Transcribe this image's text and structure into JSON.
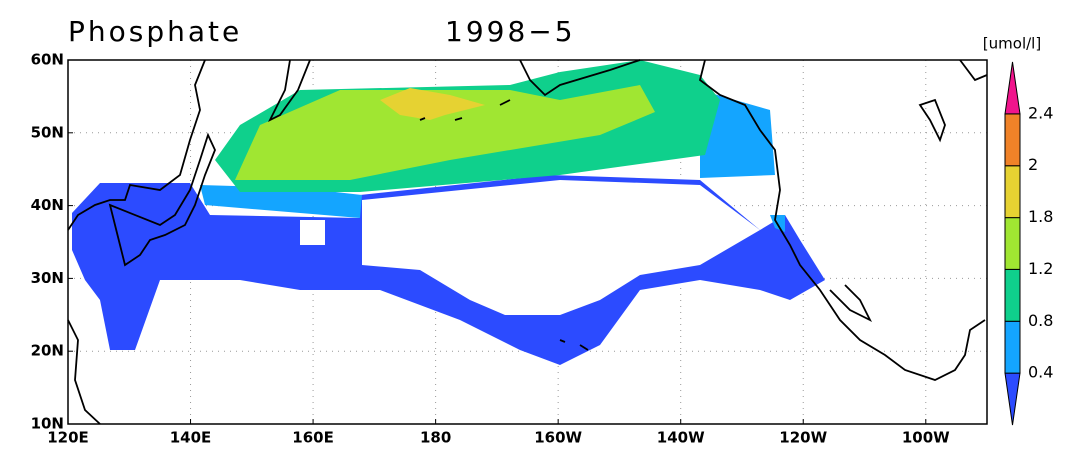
{
  "title": "Phosphate",
  "period": "1998−5",
  "unit": "[umol/l]",
  "x_labels": [
    "120E",
    "140E",
    "160E",
    "180",
    "160W",
    "140W",
    "120W",
    "100W"
  ],
  "y_labels": [
    "10N",
    "20N",
    "30N",
    "40N",
    "50N",
    "60N"
  ],
  "colorbar": {
    "levels": [
      0.4,
      0.8,
      1.2,
      1.8,
      2,
      2.4
    ],
    "colors": [
      "#2c4bff",
      "#14a5ff",
      "#0fd08c",
      "#a0e632",
      "#e6d232",
      "#f08228",
      "#f0148c"
    ]
  }
}
